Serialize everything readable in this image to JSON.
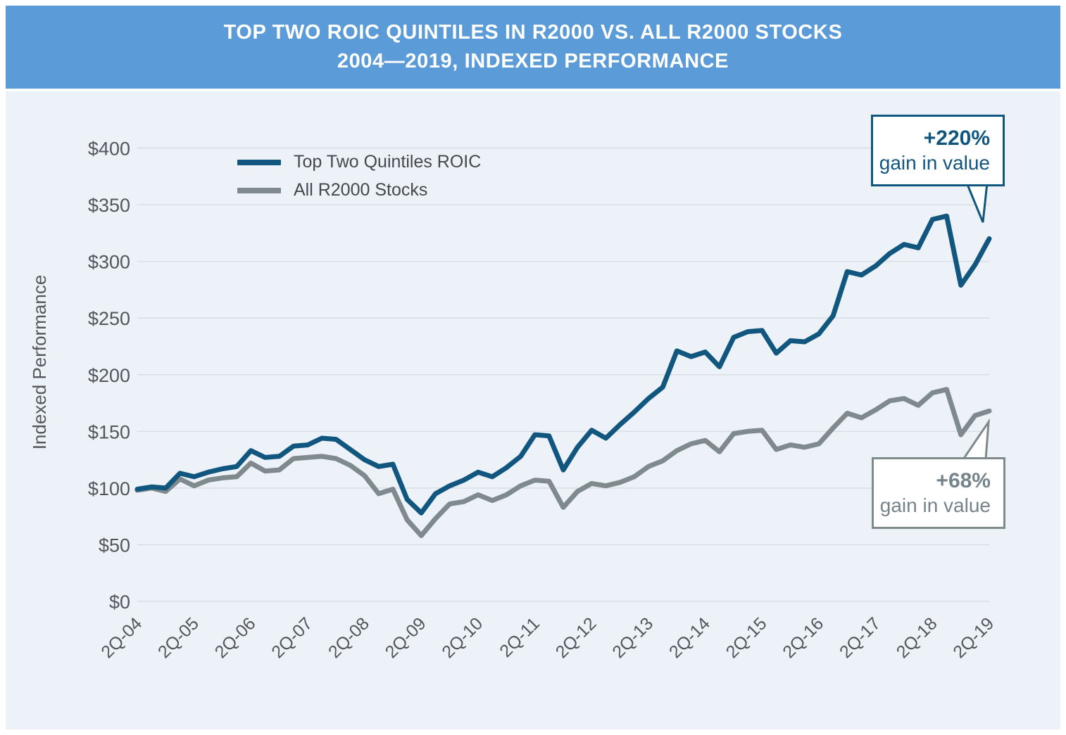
{
  "header": {
    "title_line1": "TOP TWO ROIC QUINTILES IN R2000 VS. ALL R2000 STOCKS",
    "title_line2": "2004—2019, INDEXED PERFORMANCE"
  },
  "colors": {
    "header_bg": "#5B9BD7",
    "chart_bg": "#EDF2F9",
    "gridline": "#D9DEE6",
    "axis_text": "#55565A",
    "series_blue": "#11567E",
    "series_gray": "#7E8A8B"
  },
  "chart_data": {
    "type": "line",
    "title": "TOP TWO ROIC QUINTILES IN R2000 VS. ALL R2000 STOCKS 2004—2019, INDEXED PERFORMANCE",
    "xlabel": "",
    "ylabel": "Indexed Performance",
    "ylim": [
      0,
      400
    ],
    "y_tick_step": 50,
    "y_tick_labels": [
      "$0",
      "$50",
      "$100",
      "$150",
      "$200",
      "$250",
      "$300",
      "$350",
      "$400"
    ],
    "x_tick_labels": [
      "2Q-04",
      "2Q-05",
      "2Q-06",
      "2Q-07",
      "2Q-08",
      "2Q-09",
      "2Q-10",
      "2Q-11",
      "2Q-12",
      "2Q-13",
      "2Q-14",
      "2Q-15",
      "2Q-16",
      "2Q-17",
      "2Q-18",
      "2Q-19"
    ],
    "x_points_per_year": 4,
    "grid": true,
    "legend_position": "top-left",
    "series": [
      {
        "name": "Top Two Quintiles ROIC",
        "color": "#11567E",
        "values": [
          99,
          101,
          100,
          113,
          110,
          114,
          117,
          119,
          133,
          127,
          128,
          137,
          138,
          144,
          143,
          134,
          125,
          119,
          121,
          90,
          78,
          95,
          102,
          107,
          114,
          110,
          118,
          128,
          147,
          146,
          116,
          136,
          151,
          144,
          156,
          167,
          179,
          189,
          221,
          216,
          220,
          207,
          233,
          238,
          239,
          219,
          230,
          229,
          236,
          252,
          291,
          288,
          296,
          307,
          315,
          312,
          337,
          340,
          279,
          297,
          320
        ]
      },
      {
        "name": "All R2000 Stocks",
        "color": "#7E8A8B",
        "values": [
          98,
          100,
          97,
          108,
          102,
          107,
          109,
          110,
          122,
          115,
          116,
          126,
          127,
          128,
          126,
          120,
          111,
          95,
          99,
          72,
          58,
          73,
          86,
          88,
          94,
          89,
          94,
          102,
          107,
          106,
          83,
          97,
          104,
          102,
          105,
          110,
          119,
          124,
          133,
          139,
          142,
          132,
          148,
          150,
          151,
          134,
          138,
          136,
          139,
          153,
          166,
          162,
          169,
          177,
          179,
          173,
          184,
          187,
          147,
          164,
          168
        ]
      }
    ],
    "annotations": [
      {
        "value": "+220%",
        "label": "gain in value",
        "series": "Top Two Quintiles ROIC"
      },
      {
        "value": "+68%",
        "label": "gain in value",
        "series": "All R2000 Stocks"
      }
    ]
  }
}
